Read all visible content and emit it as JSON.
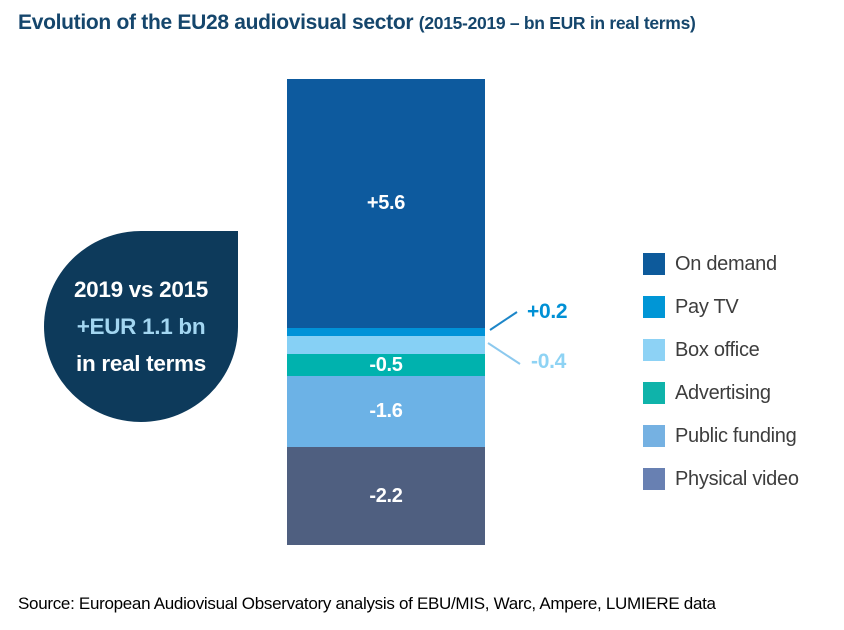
{
  "title": {
    "main": "Evolution of the EU28 audiovisual sector",
    "sub": "(2015-2019 – bn EUR in real terms)",
    "color": "#15466c"
  },
  "badge": {
    "line1": "2019 vs 2015",
    "line2": "+EUR 1.1 bn",
    "line3": "in real terms",
    "bg_color": "#0d3a5b",
    "highlight_color": "#a3d6f1"
  },
  "chart_data": {
    "type": "bar",
    "subtype": "single-stacked-column-of-changes",
    "title": "Evolution of the EU28 audiovisual sector (2015-2019 – bn EUR in real terms)",
    "unit": "bn EUR (real terms)",
    "net_change": 1.1,
    "legend_position": "right",
    "segments": [
      {
        "name": "On demand",
        "value": 5.6,
        "label": "+5.6",
        "label_position": "inside",
        "color": "#0d5a9e"
      },
      {
        "name": "Pay TV",
        "value": 0.2,
        "label": "+0.2",
        "label_position": "outside",
        "color": "#0092d8",
        "label_color": "#0090d5",
        "leader_color": "#1d86c8"
      },
      {
        "name": "Box office",
        "value": -0.4,
        "label": "-0.4",
        "label_position": "outside",
        "color": "#86d0f5",
        "label_color": "#8ed3f4",
        "leader_color": "#8cc9ee"
      },
      {
        "name": "Advertising",
        "value": -0.5,
        "label": "-0.5",
        "label_position": "inside",
        "color": "#00b2ae"
      },
      {
        "name": "Public funding",
        "value": -1.6,
        "label": "-1.6",
        "label_position": "inside",
        "color": "#6cb2e6"
      },
      {
        "name": "Physical video",
        "value": -2.2,
        "label": "-2.2",
        "label_position": "inside",
        "color": "#4f5f80"
      }
    ]
  },
  "legend": {
    "items": [
      {
        "label": "On demand",
        "color": "#0d5a9b"
      },
      {
        "label": "Pay TV",
        "color": "#0096d6"
      },
      {
        "label": "Box office",
        "color": "#8dd2f5"
      },
      {
        "label": "Advertising",
        "color": "#0fb3aa"
      },
      {
        "label": "Public funding",
        "color": "#75b1e2"
      },
      {
        "label": "Physical video",
        "color": "#6880b2"
      }
    ]
  },
  "source": "Source: European Audiovisual Observatory analysis of EBU/MIS, Warc, Ampere, LUMIERE data"
}
